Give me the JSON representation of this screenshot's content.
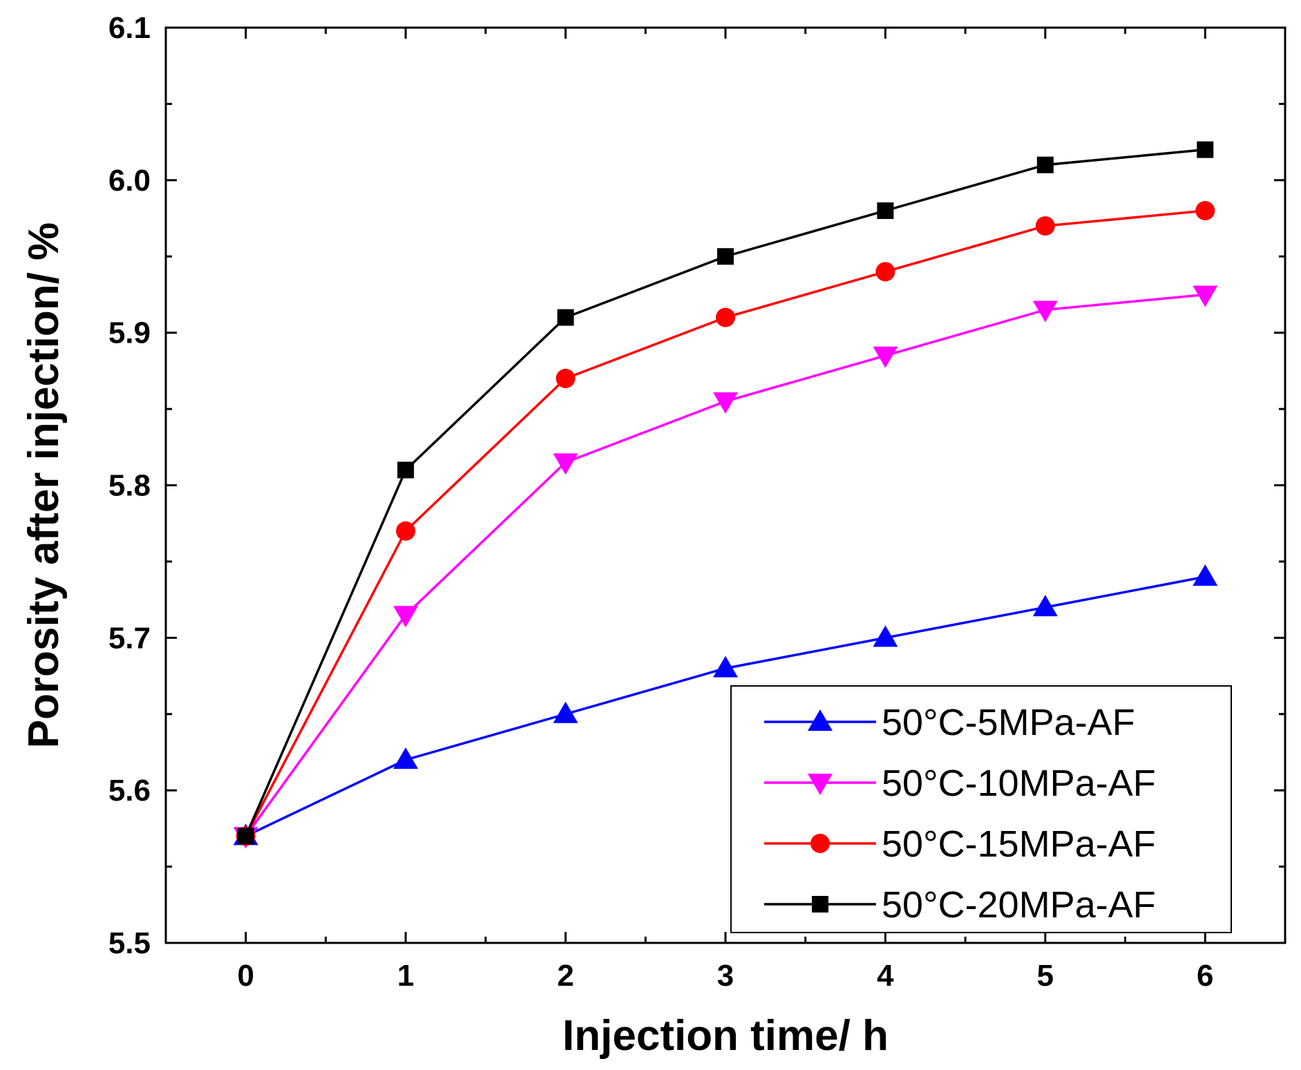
{
  "chart_data": {
    "type": "line",
    "title": "",
    "xlabel": "Injection time/ h",
    "ylabel": "Porosity after injection/ %",
    "xlim": [
      -0.5,
      6.5
    ],
    "ylim": [
      5.5,
      6.1
    ],
    "xticks": [
      0,
      1,
      2,
      3,
      4,
      5,
      6
    ],
    "xtick_labels": [
      "0",
      "1",
      "2",
      "3",
      "4",
      "5",
      "6"
    ],
    "yticks": [
      5.5,
      5.6,
      5.7,
      5.8,
      5.9,
      6.0,
      6.1
    ],
    "ytick_labels": [
      "5.5",
      "5.6",
      "5.7",
      "5.8",
      "5.9",
      "6.0",
      "6.1"
    ],
    "x": [
      0,
      1,
      2,
      3,
      4,
      5,
      6
    ],
    "grid": false,
    "legend_position": "bottom-right",
    "series": [
      {
        "name": "50°C-5MPa-AF",
        "color": "#0000ff",
        "marker": "triangle-up",
        "values": [
          5.57,
          5.62,
          5.65,
          5.68,
          5.7,
          5.72,
          5.74
        ]
      },
      {
        "name": "50°C-10MPa-AF",
        "color": "#ff00ff",
        "marker": "triangle-down",
        "values": [
          5.57,
          5.715,
          5.815,
          5.855,
          5.885,
          5.915,
          5.925
        ]
      },
      {
        "name": "50°C-15MPa-AF",
        "color": "#ff0000",
        "marker": "circle",
        "values": [
          5.57,
          5.77,
          5.87,
          5.91,
          5.94,
          5.97,
          5.98
        ]
      },
      {
        "name": "50°C-20MPa-AF",
        "color": "#000000",
        "marker": "square",
        "values": [
          5.57,
          5.81,
          5.91,
          5.95,
          5.98,
          6.01,
          6.02
        ]
      }
    ]
  }
}
